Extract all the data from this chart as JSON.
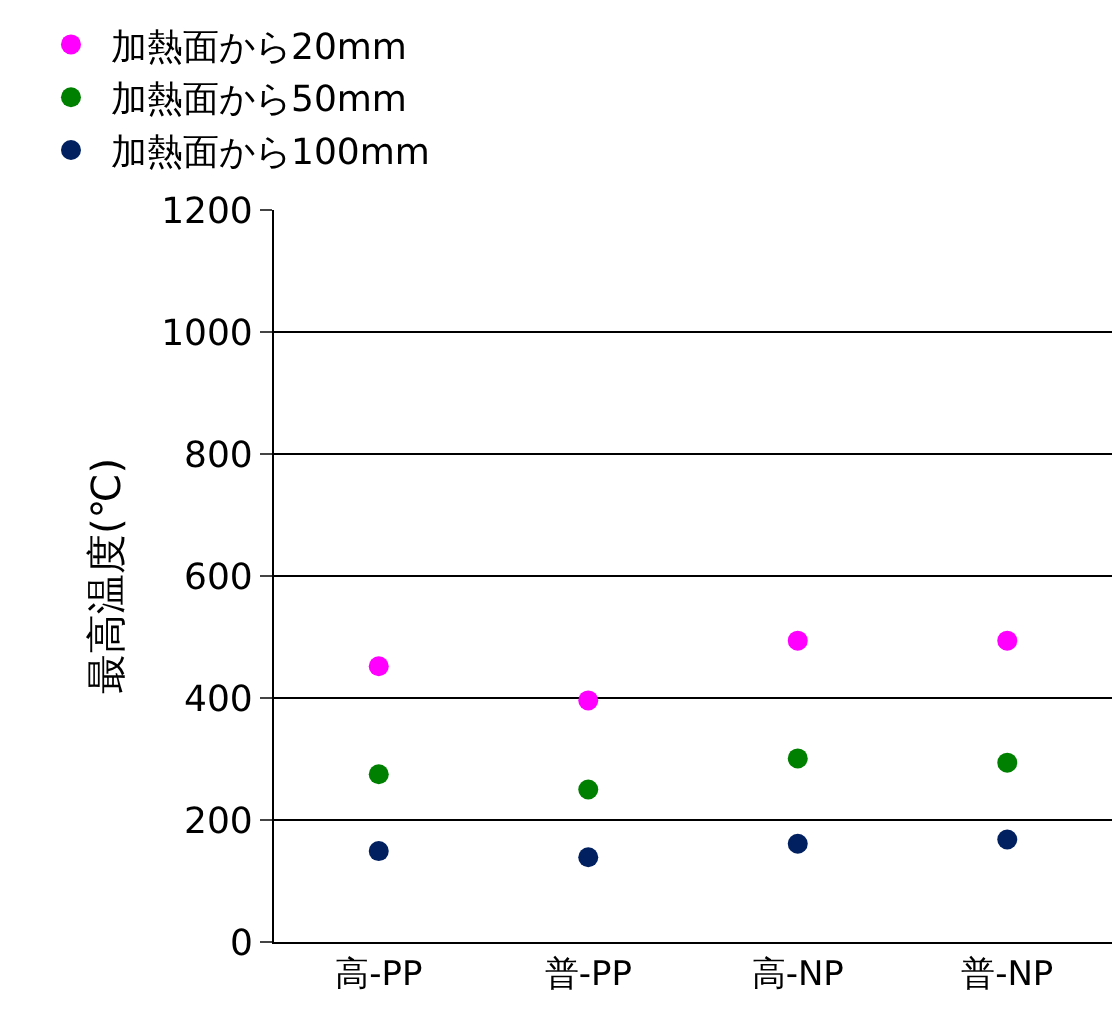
{
  "chart_data": {
    "type": "scatter",
    "ylabel": "最高温度(℃)",
    "categories": [
      "高-PP",
      "普-PP",
      "高-NP",
      "普-NP"
    ],
    "series": [
      {
        "name": "加熱面から20mm",
        "color": "#ff00ff",
        "values": [
          452,
          396,
          494,
          494
        ]
      },
      {
        "name": "加熱面から50mm",
        "color": "#008000",
        "values": [
          275,
          250,
          301,
          294
        ]
      },
      {
        "name": "加熱面から100mm",
        "color": "#002060",
        "values": [
          149,
          139,
          161,
          168
        ]
      }
    ],
    "ylim": [
      0,
      1200
    ],
    "yticks": [
      0,
      200,
      400,
      600,
      800,
      1000,
      1200
    ],
    "grid": "y",
    "legend": "top",
    "marker": "circle"
  }
}
